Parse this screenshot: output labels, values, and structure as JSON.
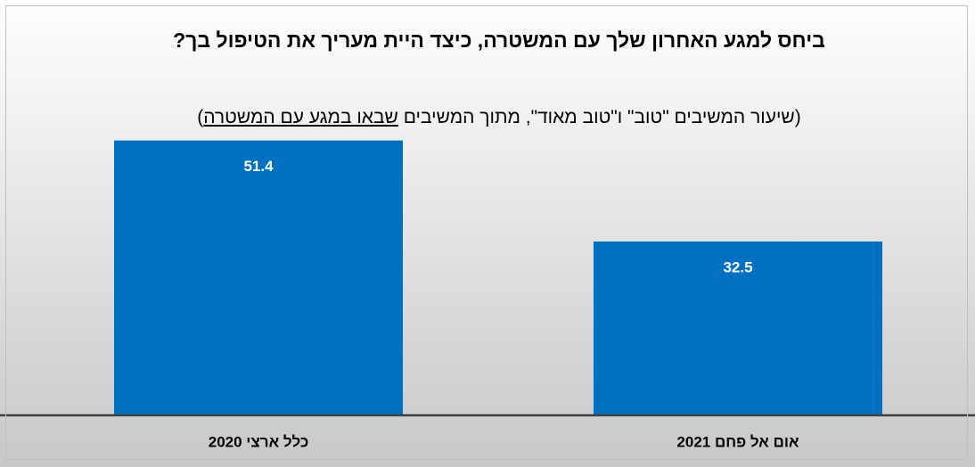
{
  "chart_data": {
    "type": "bar",
    "title": "ביחס למגע האחרון שלך עם המשטרה, כיצד היית מעריך את הטיפול בך?",
    "subtitle": [
      "(שיעור המשיבים \"טוב\" ו\"טוב מאוד\", מתוך המשיבים ",
      "שבאו במגע עם המשטרה",
      ")"
    ],
    "categories": [
      "כלל ארצי 2020",
      "אום אל פחם 2021"
    ],
    "values": [
      51.4,
      32.5
    ],
    "color": "#0070c0"
  }
}
